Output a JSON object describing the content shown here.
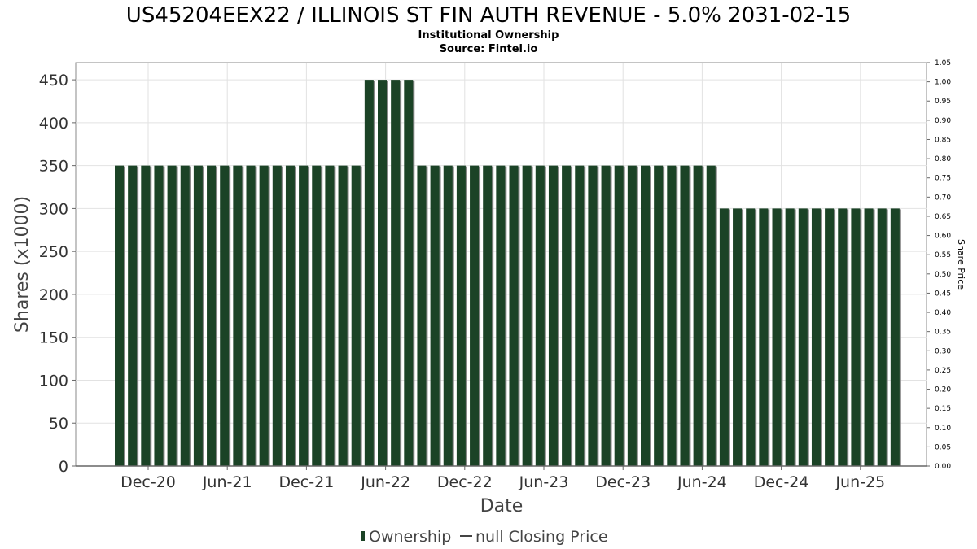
{
  "chart_data": {
    "type": "bar",
    "title": "US45204EEX22 / ILLINOIS ST FIN AUTH REVENUE - 5.0% 2031-02-15",
    "subtitle": "Institutional Ownership",
    "source": "Source: Fintel.io",
    "xlabel": "Date",
    "ylabel": "Shares (x1000)",
    "ylabel_right": "Share Price",
    "ylim": [
      0,
      470
    ],
    "ylim_right": [
      0,
      1.05
    ],
    "yticks": [
      "0",
      "50",
      "100",
      "150",
      "200",
      "250",
      "300",
      "350",
      "400",
      "450"
    ],
    "yticks_right": [
      "0.00",
      "0.05",
      "0.10",
      "0.15",
      "0.20",
      "0.25",
      "0.30",
      "0.35",
      "0.40",
      "0.45",
      "0.50",
      "0.55",
      "0.60",
      "0.65",
      "0.70",
      "0.75",
      "0.80",
      "0.85",
      "0.90",
      "0.95",
      "1.00",
      "1.05"
    ],
    "xticks": [
      "Dec-20",
      "Jun-21",
      "Dec-21",
      "Jun-22",
      "Dec-22",
      "Jun-23",
      "Dec-23",
      "Jun-24",
      "Dec-24",
      "Jun-25"
    ],
    "grid": true,
    "legend_position": "bottom-center",
    "series": [
      {
        "name": "Ownership",
        "color": "#1b4326",
        "values": [
          350,
          350,
          350,
          350,
          350,
          350,
          350,
          350,
          350,
          350,
          350,
          350,
          350,
          350,
          350,
          350,
          350,
          350,
          350,
          450,
          450,
          450,
          450,
          350,
          350,
          350,
          350,
          350,
          350,
          350,
          350,
          350,
          350,
          350,
          350,
          350,
          350,
          350,
          350,
          350,
          350,
          350,
          350,
          350,
          350,
          350,
          300,
          300,
          300,
          300,
          300,
          300,
          300,
          300,
          300,
          300,
          300,
          300,
          300,
          300
        ]
      }
    ],
    "legend": [
      "Ownership",
      "null Closing Price"
    ]
  }
}
